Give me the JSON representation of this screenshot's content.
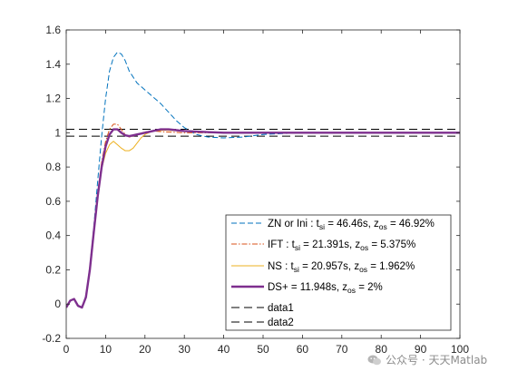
{
  "chart_data": {
    "type": "line",
    "title": "",
    "xlabel": "",
    "ylabel": "",
    "xlim": [
      0,
      100
    ],
    "ylim": [
      -0.2,
      1.6
    ],
    "xticks": [
      0,
      10,
      20,
      30,
      40,
      50,
      60,
      70,
      80,
      90,
      100
    ],
    "yticks": [
      -0.2,
      0,
      0.2,
      0.4,
      0.6,
      0.8,
      1,
      1.2,
      1.4,
      1.6
    ],
    "grid": false,
    "legend_position": "bottom-right",
    "series": [
      {
        "name": "ZN or Ini : t_si = 46.46s, z_os = 46.92%",
        "label": {
          "prefix": "ZN or Ini : t",
          "sub1": "si",
          "mid": " = 46.46s, z",
          "sub2": "os",
          "suffix": " = 46.92%"
        },
        "color": "#0072BD",
        "style": "dashed",
        "x": [
          0,
          1,
          2,
          3,
          4,
          5,
          6,
          7,
          8,
          9,
          10,
          11,
          12,
          13,
          14,
          15,
          16,
          18,
          20,
          22,
          24,
          26,
          28,
          30,
          33,
          36,
          40,
          45,
          50,
          60,
          70,
          80,
          90,
          100
        ],
        "y": [
          -0.02,
          0.02,
          0.03,
          -0.01,
          -0.02,
          0.05,
          0.22,
          0.45,
          0.72,
          0.98,
          1.2,
          1.36,
          1.44,
          1.47,
          1.46,
          1.42,
          1.36,
          1.29,
          1.25,
          1.21,
          1.17,
          1.12,
          1.07,
          1.03,
          0.99,
          0.975,
          0.97,
          0.975,
          0.99,
          1.0,
          1.0,
          1.0,
          1.0,
          1.0
        ]
      },
      {
        "name": "IFT : t_si = 21.391s, z_os = 5.375%",
        "label": {
          "prefix": "IFT : t",
          "sub1": "si",
          "mid": " = 21.391s, z",
          "sub2": "os",
          "suffix": " = 5.375%"
        },
        "color": "#D95319",
        "style": "dashdot",
        "x": [
          0,
          1,
          2,
          3,
          4,
          5,
          6,
          7,
          8,
          9,
          10,
          11,
          12,
          13,
          14,
          15,
          16,
          17,
          18,
          20,
          22,
          25,
          30,
          40,
          60,
          100
        ],
        "y": [
          -0.02,
          0.02,
          0.03,
          -0.01,
          -0.02,
          0.04,
          0.2,
          0.42,
          0.65,
          0.83,
          0.95,
          1.02,
          1.05,
          1.05,
          1.02,
          0.99,
          0.975,
          0.98,
          0.99,
          1.005,
          1.01,
          1.005,
          1.0,
          1.0,
          1.0,
          1.0
        ]
      },
      {
        "name": "NS : t_si = 20.957s, z_os = 1.962%",
        "label": {
          "prefix": "NS : t",
          "sub1": "si",
          "mid": " = 20.957s, z",
          "sub2": "os",
          "suffix": " = 1.962%"
        },
        "color": "#EDB120",
        "style": "solid",
        "x": [
          0,
          1,
          2,
          3,
          4,
          5,
          6,
          7,
          8,
          9,
          10,
          11,
          12,
          13,
          14,
          15,
          16,
          17,
          18,
          19,
          20,
          22,
          25,
          30,
          40,
          60,
          100
        ],
        "y": [
          -0.02,
          0.02,
          0.03,
          -0.01,
          -0.02,
          0.04,
          0.2,
          0.42,
          0.63,
          0.79,
          0.88,
          0.93,
          0.95,
          0.93,
          0.91,
          0.895,
          0.895,
          0.91,
          0.94,
          0.97,
          0.99,
          1.01,
          1.015,
          1.01,
          1.0,
          1.0,
          1.0
        ]
      },
      {
        "name": "DS+ = 11.948s, z_os = 2%",
        "label": {
          "prefix": "DS+ = 11.948s, z",
          "sub1": "os",
          "mid": "",
          "sub2": "",
          "suffix": " = 2%"
        },
        "color": "#7E2F8E",
        "style": "solid-thick",
        "x": [
          0,
          1,
          2,
          3,
          4,
          5,
          6,
          7,
          8,
          9,
          10,
          11,
          12,
          13,
          14,
          15,
          16,
          17,
          18,
          19,
          20,
          22,
          24,
          26,
          28,
          30,
          35,
          40,
          50,
          60,
          80,
          100
        ],
        "y": [
          -0.02,
          0.02,
          0.03,
          -0.01,
          -0.02,
          0.04,
          0.2,
          0.42,
          0.63,
          0.8,
          0.92,
          0.99,
          1.02,
          1.02,
          1.0,
          0.985,
          0.98,
          0.985,
          0.99,
          0.995,
          1.0,
          1.01,
          1.02,
          1.02,
          1.015,
          1.01,
          1.005,
          1.0,
          1.0,
          1.0,
          1.0,
          1.0
        ]
      },
      {
        "name": "data1",
        "label": {
          "prefix": "data1",
          "sub1": "",
          "mid": "",
          "sub2": "",
          "suffix": ""
        },
        "color": "#000000",
        "style": "longdash",
        "x": [
          0,
          100
        ],
        "y": [
          1.02,
          1.02
        ]
      },
      {
        "name": "data2",
        "label": {
          "prefix": "data2",
          "sub1": "",
          "mid": "",
          "sub2": "",
          "suffix": ""
        },
        "color": "#000000",
        "style": "longdash",
        "x": [
          0,
          100
        ],
        "y": [
          0.98,
          0.98
        ]
      }
    ]
  },
  "watermark": {
    "text": "公众号 · 天天Matlab"
  }
}
